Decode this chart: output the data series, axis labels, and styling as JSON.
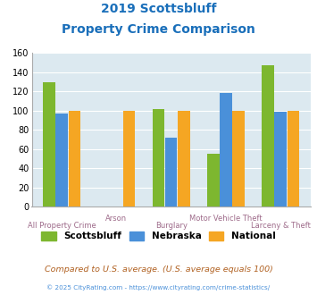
{
  "title_line1": "2019 Scottsbluff",
  "title_line2": "Property Crime Comparison",
  "title_color": "#1a6fba",
  "categories": [
    "All Property Crime",
    "Arson",
    "Burglary",
    "Motor Vehicle Theft",
    "Larceny & Theft"
  ],
  "scottsbluff": [
    130,
    null,
    102,
    55,
    147
  ],
  "nebraska": [
    97,
    null,
    72,
    118,
    99
  ],
  "national": [
    100,
    100,
    100,
    100,
    100
  ],
  "color_scottsbluff": "#7db72f",
  "color_nebraska": "#4a90d9",
  "color_national": "#f5a623",
  "ylim": [
    0,
    160
  ],
  "yticks": [
    0,
    20,
    40,
    60,
    80,
    100,
    120,
    140,
    160
  ],
  "plot_bg_color": "#dce9f0",
  "legend_labels": [
    "Scottsbluff",
    "Nebraska",
    "National"
  ],
  "footnote": "Compared to U.S. average. (U.S. average equals 100)",
  "footnote2": "© 2025 CityRating.com - https://www.cityrating.com/crime-statistics/",
  "footnote_color": "#b06020",
  "footnote2_color": "#4a90d9",
  "xlabel_color": "#9e6b8a",
  "xtick_labels_row1": [
    "",
    "Arson",
    "",
    "Motor Vehicle Theft",
    ""
  ],
  "xtick_labels_row2": [
    "All Property Crime",
    "",
    "Burglary",
    "",
    "Larceny & Theft"
  ]
}
